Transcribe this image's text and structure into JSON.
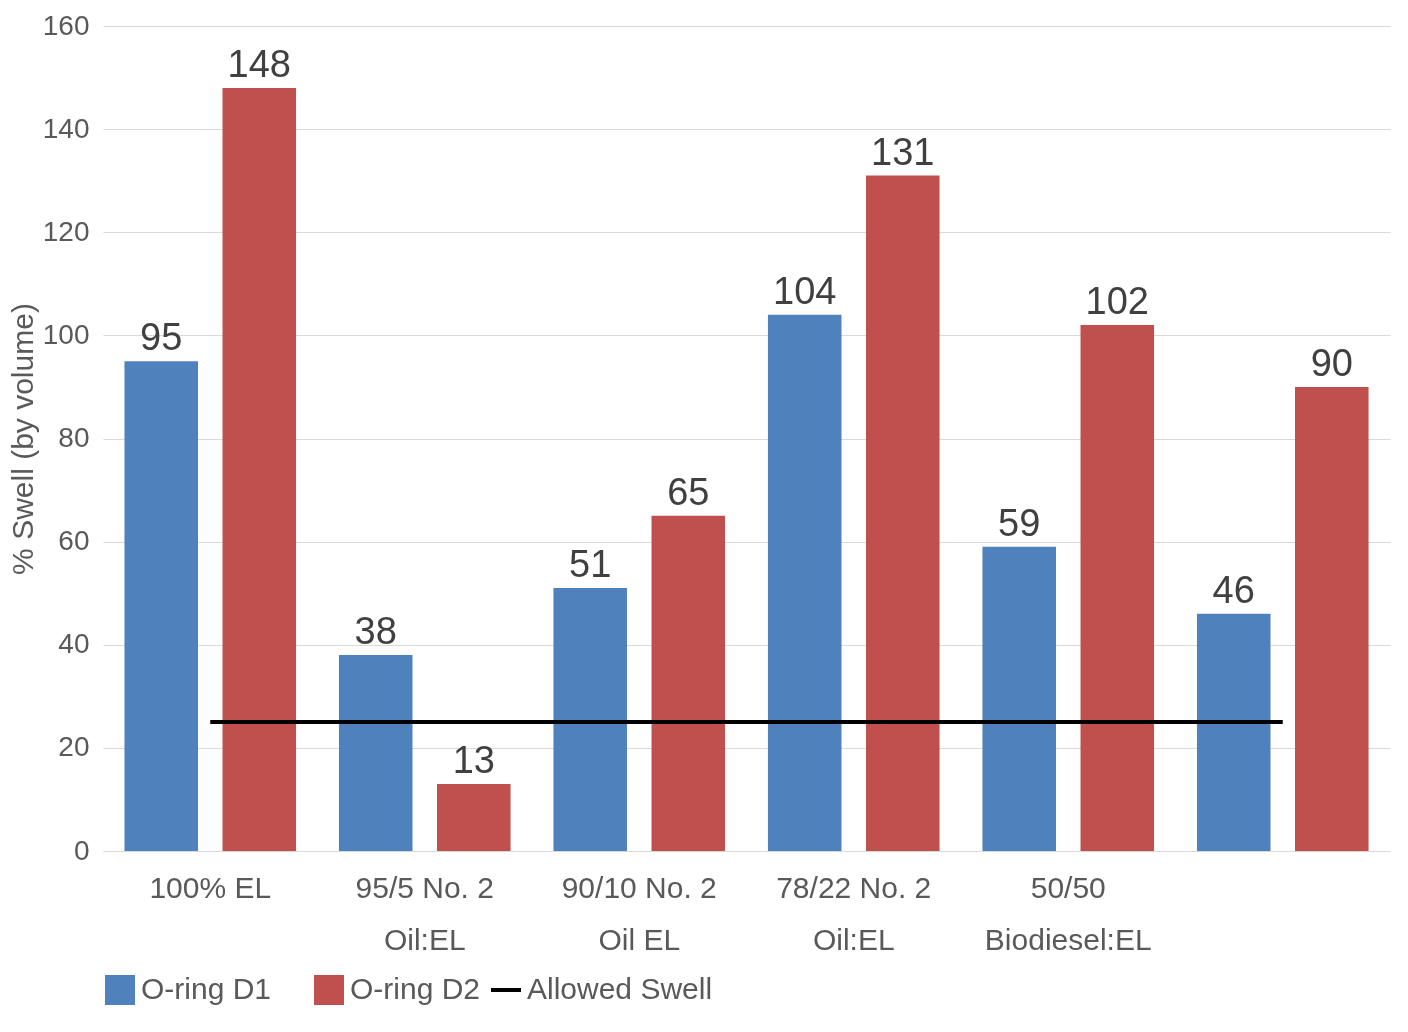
{
  "chart_data": {
    "type": "bar",
    "ylabel": "% Swell (by volume)",
    "categories": [
      "100% EL",
      "95/5 No. 2\nOil:EL",
      "90/10 No. 2\nOil EL",
      "78/22 No. 2\nOil:EL",
      "50/50\nBiodiesel:EL",
      null
    ],
    "series": [
      {
        "name": "O-ring D1",
        "color": "#4f81bd",
        "values": [
          95,
          38,
          51,
          104,
          59,
          46
        ]
      },
      {
        "name": "O-ring D2",
        "color": "#c0504d",
        "values": [
          148,
          13,
          65,
          131,
          102,
          90
        ]
      }
    ],
    "ref_lines": [
      {
        "axis": "y",
        "value": 25,
        "label": "Allowed Swell",
        "color": "#000000",
        "line_style": "solid"
      }
    ],
    "ylim": [
      0,
      160
    ],
    "yticks": [
      0,
      20,
      40,
      60,
      80,
      100,
      120,
      140,
      160
    ],
    "grid": "y",
    "legend": "bottom",
    "data_labels": true
  }
}
